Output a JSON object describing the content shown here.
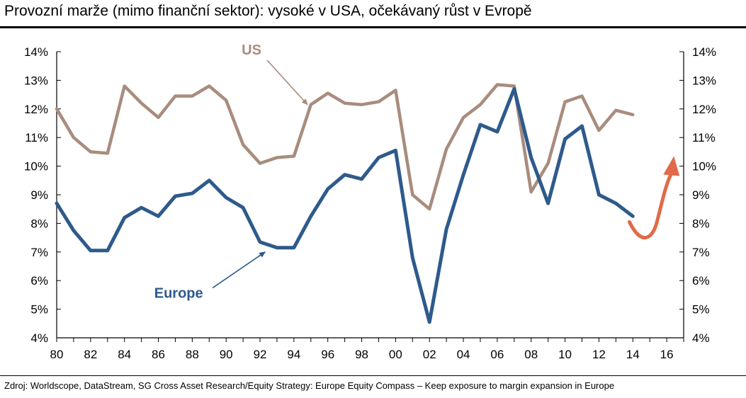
{
  "header": {
    "title": "Provozní marže (mimo finanční sektor): vysoké v USA, očekávaný růst v Evropě"
  },
  "footer": {
    "source": "Zdroj: Worldscope, DataStream, SG Cross Asset Research/Equity Strategy: Europe Equity Compass – Keep exposure to margin expansion in Europe"
  },
  "colors": {
    "us": "#a88c7d",
    "europe": "#2e5a8c",
    "forecast_arrow": "#e06a4a"
  },
  "chart_data": {
    "type": "line",
    "title": "Provozní marže (mimo finanční sektor): vysoké v USA, očekávaný růst v Evropě",
    "xlabel": "",
    "ylabel": "",
    "x": [
      1980,
      1981,
      1982,
      1983,
      1984,
      1985,
      1986,
      1987,
      1988,
      1989,
      1990,
      1991,
      1992,
      1993,
      1994,
      1995,
      1996,
      1997,
      1998,
      1999,
      2000,
      2001,
      2002,
      2003,
      2004,
      2005,
      2006,
      2007,
      2008,
      2009,
      2010,
      2011,
      2012,
      2013,
      2014
    ],
    "xlim": [
      1980,
      2017
    ],
    "xticks": [
      1980,
      1982,
      1984,
      1986,
      1988,
      1990,
      1992,
      1994,
      1996,
      1998,
      2000,
      2002,
      2004,
      2006,
      2008,
      2010,
      2012,
      2014,
      2016
    ],
    "xtick_labels": [
      "80",
      "82",
      "84",
      "86",
      "88",
      "90",
      "92",
      "94",
      "96",
      "98",
      "00",
      "02",
      "04",
      "06",
      "08",
      "10",
      "12",
      "14",
      "16"
    ],
    "ylim": [
      4,
      14
    ],
    "yticks": [
      4,
      5,
      6,
      7,
      8,
      9,
      10,
      11,
      12,
      13,
      14
    ],
    "ytick_labels": [
      "4%",
      "5%",
      "6%",
      "7%",
      "8%",
      "9%",
      "10%",
      "11%",
      "12%",
      "13%",
      "14%"
    ],
    "secondary_y_axis": true,
    "grid": false,
    "series": [
      {
        "name": "US",
        "values": [
          12.0,
          11.0,
          10.5,
          10.45,
          12.8,
          12.2,
          11.7,
          12.45,
          12.45,
          12.8,
          12.3,
          10.75,
          10.1,
          10.3,
          10.35,
          12.15,
          12.55,
          12.2,
          12.15,
          12.25,
          12.65,
          9.0,
          8.5,
          10.6,
          11.7,
          12.15,
          12.85,
          12.8,
          9.1,
          10.1,
          12.25,
          12.45,
          11.25,
          11.95,
          11.8
        ]
      },
      {
        "name": "Europe",
        "values": [
          8.7,
          7.75,
          7.05,
          7.05,
          8.2,
          8.55,
          8.25,
          8.95,
          9.05,
          9.5,
          8.9,
          8.55,
          7.35,
          7.15,
          7.15,
          8.25,
          9.2,
          9.7,
          9.55,
          10.3,
          10.55,
          6.8,
          4.55,
          7.8,
          9.7,
          11.45,
          11.2,
          12.7,
          10.3,
          8.7,
          10.95,
          11.4,
          9.0,
          8.7,
          8.25
        ]
      }
    ],
    "forecast_arrow": {
      "points": [
        [
          2013.8,
          8.05
        ],
        [
          2014.5,
          7.4
        ],
        [
          2015.4,
          8.0
        ],
        [
          2016.3,
          10.2
        ]
      ]
    },
    "annotations": [
      {
        "text": "US",
        "series": "US",
        "label_at": [
          1991.5,
          13.9
        ],
        "arrow_to": [
          1994.8,
          12.15
        ]
      },
      {
        "text": "Europe",
        "series": "Europe",
        "label_at": [
          1987.2,
          5.4
        ],
        "arrow_to": [
          1992.3,
          7.0
        ]
      }
    ]
  }
}
